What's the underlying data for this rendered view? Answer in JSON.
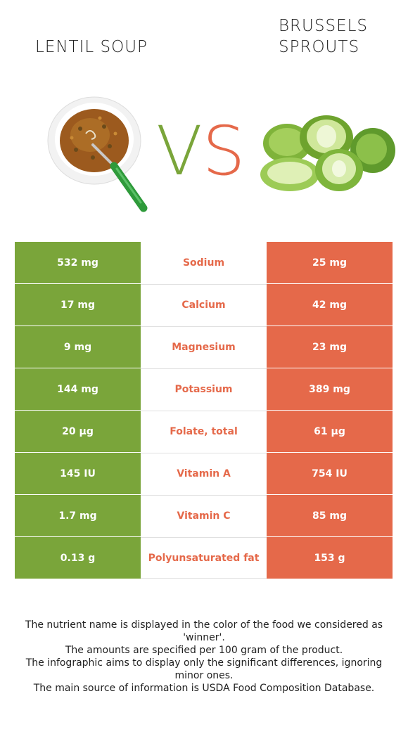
{
  "colors": {
    "left": "#7aa53a",
    "right": "#e5694a"
  },
  "header": {
    "left_title": "LENTIL SOUP",
    "right_title": "BRUSSELS\nSPROUTS",
    "vs_v": "V",
    "vs_s": "S"
  },
  "images": {
    "left": "lentil-soup-bowl-image",
    "right": "brussels-sprouts-image"
  },
  "rows": [
    {
      "left": "532 mg",
      "nutrient": "Sodium",
      "right": "25 mg"
    },
    {
      "left": "17 mg",
      "nutrient": "Calcium",
      "right": "42 mg"
    },
    {
      "left": "9 mg",
      "nutrient": "Magnesium",
      "right": "23 mg"
    },
    {
      "left": "144 mg",
      "nutrient": "Potassium",
      "right": "389 mg"
    },
    {
      "left": "20 µg",
      "nutrient": "Folate, total",
      "right": "61 µg"
    },
    {
      "left": "145 IU",
      "nutrient": "Vitamin A",
      "right": "754 IU"
    },
    {
      "left": "1.7 mg",
      "nutrient": "Vitamin C",
      "right": "85 mg"
    },
    {
      "left": "0.13 g",
      "nutrient": "Polyunsaturated fat",
      "right": "153 g"
    }
  ],
  "footnotes": [
    "The nutrient name is displayed in the color of the food we considered as 'winner'.",
    "The amounts are specified per 100 gram of the product.",
    "The infographic aims to display only the significant differences, ignoring minor ones.",
    "The main source of information is USDA Food Composition Database."
  ]
}
